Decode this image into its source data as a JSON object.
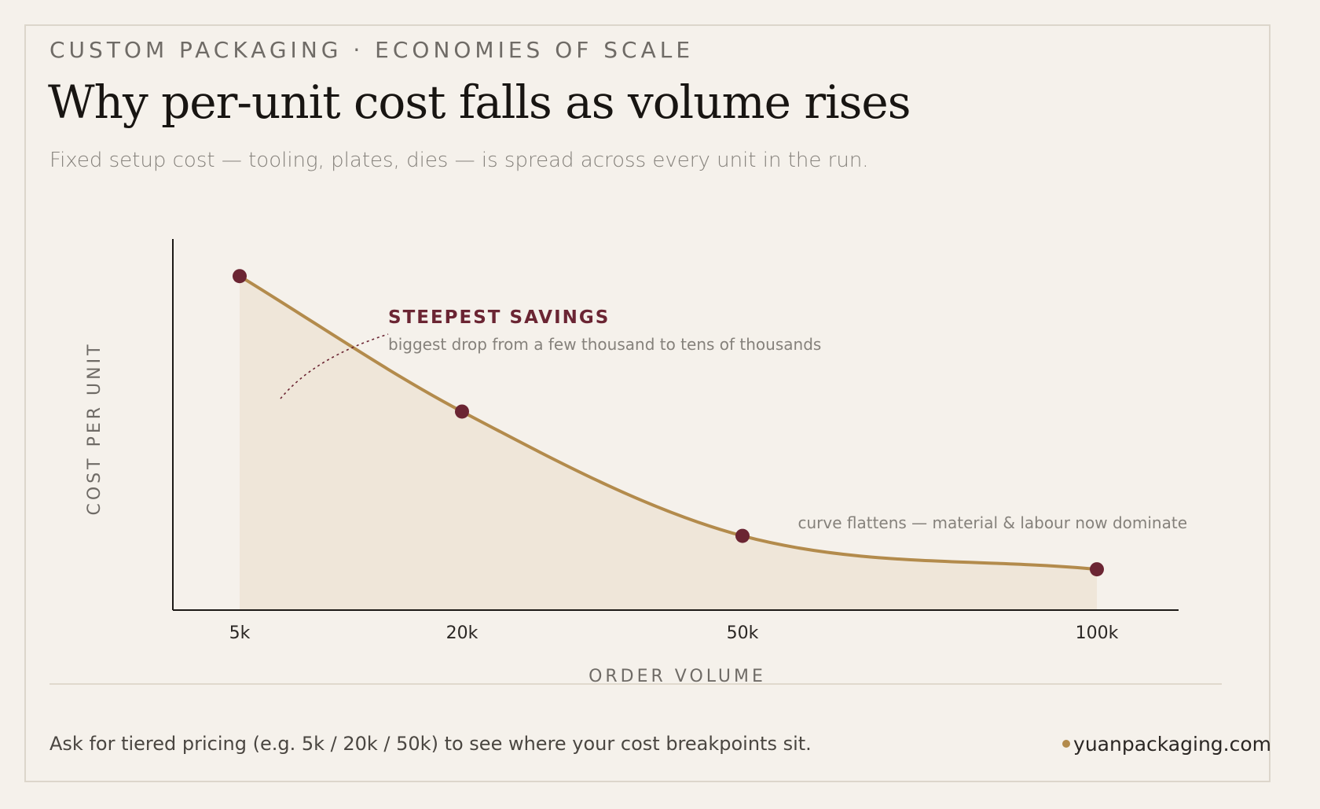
{
  "header": {
    "eyebrow": "CUSTOM PACKAGING · ECONOMIES OF SCALE",
    "title": "Why per-unit cost falls as volume rises",
    "subtitle": "Fixed setup cost — tooling, plates, dies — is spread across every unit in the run."
  },
  "colors": {
    "background": "#f5f1eb",
    "curve": "#b38b4c",
    "fill": "#efe6d9",
    "point": "#6b2533",
    "annotation_accent": "#6b2533",
    "text_muted": "#85817b"
  },
  "chart_data": {
    "type": "area",
    "xlabel": "ORDER VOLUME",
    "ylabel": "COST PER UNIT",
    "categories": [
      "5k",
      "20k",
      "50k",
      "100k"
    ],
    "values": [
      0.9,
      0.535,
      0.2,
      0.11
    ],
    "y_tick_labels": false,
    "grid": false,
    "annotations": [
      {
        "title": "STEEPEST SAVINGS",
        "text": "biggest drop from a few thousand to tens of thousands"
      },
      {
        "text": "curve flattens — material & labour now dominate"
      }
    ]
  },
  "footer": {
    "note": "Ask for tiered pricing (e.g. 5k / 20k / 50k) to see where your cost breakpoints sit.",
    "brand": "yuanpackaging.com"
  }
}
